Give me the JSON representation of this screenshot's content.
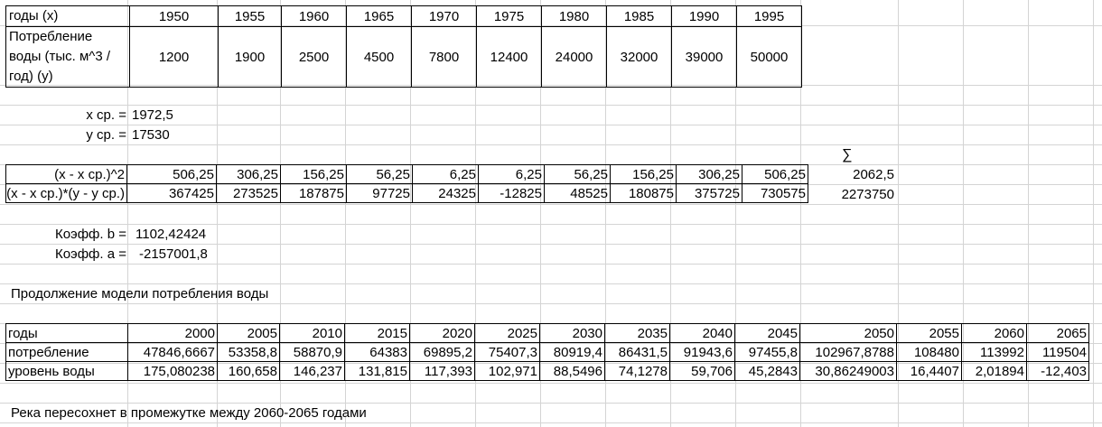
{
  "top_table": {
    "years_label": "годы (x)",
    "years": [
      "1950",
      "1955",
      "1960",
      "1965",
      "1970",
      "1975",
      "1980",
      "1985",
      "1990",
      "1995"
    ],
    "consumption_label": "Потребление воды (тыс. м^3 / год) (y)",
    "consumption": [
      "1200",
      "1900",
      "2500",
      "4500",
      "7800",
      "12400",
      "24000",
      "32000",
      "39000",
      "50000"
    ]
  },
  "means": {
    "x_label": "x ср. =",
    "x_value": "1972,5",
    "y_label": "y ср. =",
    "y_value": "17530"
  },
  "sigma_symbol": "∑",
  "calc_table": {
    "row1_label": "(x - x ср.)^2",
    "row1": [
      "506,25",
      "306,25",
      "156,25",
      "56,25",
      "6,25",
      "6,25",
      "56,25",
      "156,25",
      "306,25",
      "506,25"
    ],
    "row1_sum": "2062,5",
    "row2_label": "(x - x ср.)*(y - y ср.)",
    "row2": [
      "367425",
      "273525",
      "187875",
      "97725",
      "24325",
      "-12825",
      "48525",
      "180875",
      "375725",
      "730575"
    ],
    "row2_sum": "2273750"
  },
  "coefficients": {
    "b_label": "Коэфф. b =",
    "b_value": "1102,42424",
    "a_label": "Коэфф. a =",
    "a_value": "-2157001,8"
  },
  "model_title": "Продолжение модели потребления воды",
  "forecast_table": {
    "years_label": "годы",
    "years": [
      "2000",
      "2005",
      "2010",
      "2015",
      "2020",
      "2025",
      "2030",
      "2035",
      "2040",
      "2045",
      "2050",
      "2055",
      "2060",
      "2065"
    ],
    "consumption_label": "потребление",
    "consumption": [
      "47846,6667",
      "53358,8",
      "58870,9",
      "64383",
      "69895,2",
      "75407,3",
      "80919,4",
      "86431,5",
      "91943,6",
      "97455,8",
      "102967,8788",
      "108480",
      "113992",
      "119504"
    ],
    "level_label": "уровень воды",
    "level": [
      "175,080238",
      "160,658",
      "146,237",
      "131,815",
      "117,393",
      "102,971",
      "88,5496",
      "74,1278",
      "59,706",
      "45,2843",
      "30,86249003",
      "16,4407",
      "2,01894",
      "-12,403"
    ]
  },
  "conclusion": "Река пересохнет в промежутке между 2060-2065 годами"
}
